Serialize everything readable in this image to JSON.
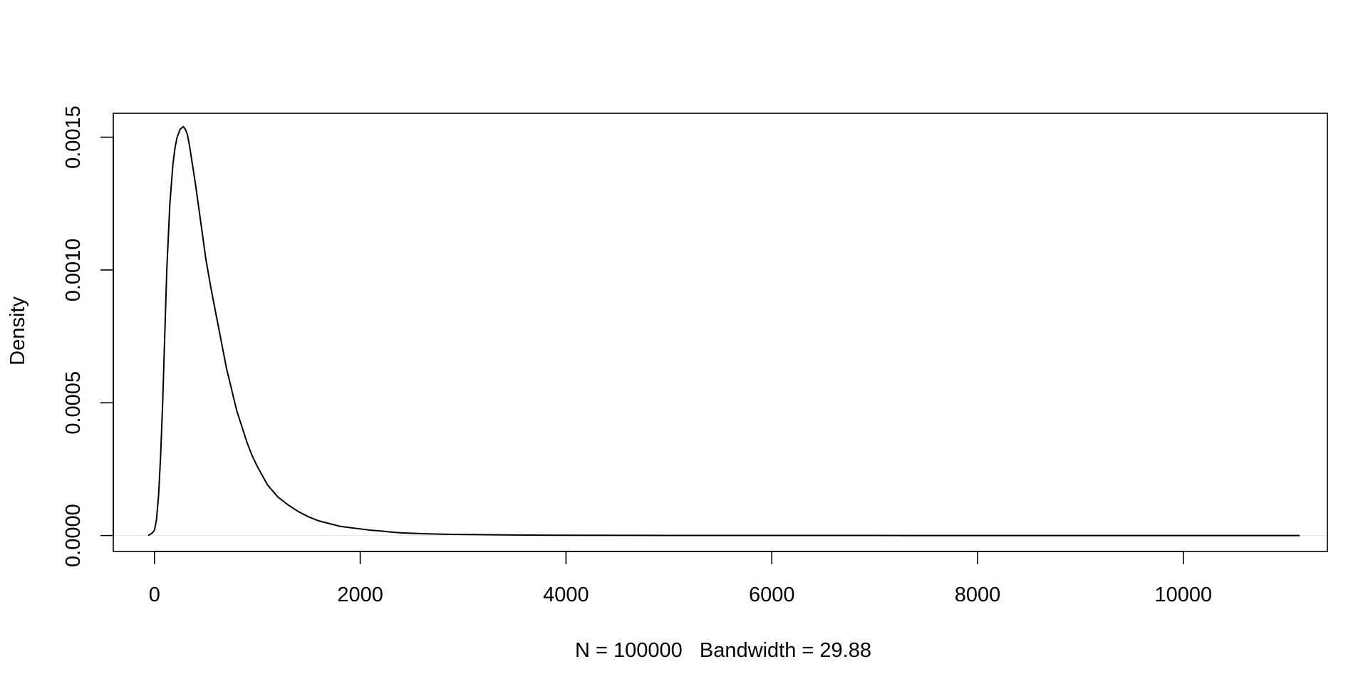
{
  "chart_data": {
    "type": "line",
    "title": "",
    "xlabel": "N = 100000   Bandwidth = 29.88",
    "ylabel": "Density",
    "xlim": [
      -400,
      11400
    ],
    "ylim": [
      -6e-05,
      0.00159
    ],
    "x_ticks": [
      0,
      2000,
      4000,
      6000,
      8000,
      10000
    ],
    "x_tick_labels": [
      "0",
      "2000",
      "4000",
      "6000",
      "8000",
      "10000"
    ],
    "y_ticks": [
      0.0,
      0.0005,
      0.001,
      0.0015
    ],
    "y_tick_labels": [
      "0.0000",
      "0.0005",
      "0.0010",
      "0.0015"
    ],
    "grid": false,
    "zero_line": {
      "y": 0,
      "color": "#e6e6e6"
    },
    "series": [
      {
        "color": "#000000",
        "x": [
          -60,
          -20,
          0,
          20,
          40,
          60,
          80,
          100,
          120,
          150,
          180,
          200,
          220,
          250,
          280,
          300,
          320,
          340,
          360,
          380,
          400,
          450,
          500,
          550,
          600,
          650,
          700,
          750,
          800,
          850,
          900,
          950,
          1000,
          1100,
          1200,
          1300,
          1400,
          1500,
          1600,
          1700,
          1800,
          1900,
          2000,
          2100,
          2200,
          2300,
          2400,
          2600,
          2800,
          3000,
          3500,
          4000,
          5000,
          6000,
          7000,
          8000,
          9000,
          10000,
          11130
        ],
        "y": [
          0.0,
          1e-05,
          2e-05,
          6e-05,
          0.00015,
          0.0003,
          0.0005,
          0.00075,
          0.001,
          0.00125,
          0.0014,
          0.00146,
          0.0015,
          0.00153,
          0.00154,
          0.00153,
          0.00151,
          0.00147,
          0.00142,
          0.00137,
          0.00132,
          0.00118,
          0.00104,
          0.00093,
          0.00083,
          0.00073,
          0.00063,
          0.00055,
          0.00047,
          0.00041,
          0.00035,
          0.0003,
          0.00026,
          0.00019,
          0.000145,
          0.000115,
          9e-05,
          7e-05,
          5.5e-05,
          4.5e-05,
          3.5e-05,
          3e-05,
          2.5e-05,
          2e-05,
          1.7e-05,
          1.3e-05,
          1e-05,
          7e-06,
          5e-06,
          4e-06,
          2e-06,
          1e-06,
          5e-07,
          3e-07,
          2e-07,
          1e-07,
          5e-08,
          2e-08,
          0.0
        ]
      }
    ]
  }
}
